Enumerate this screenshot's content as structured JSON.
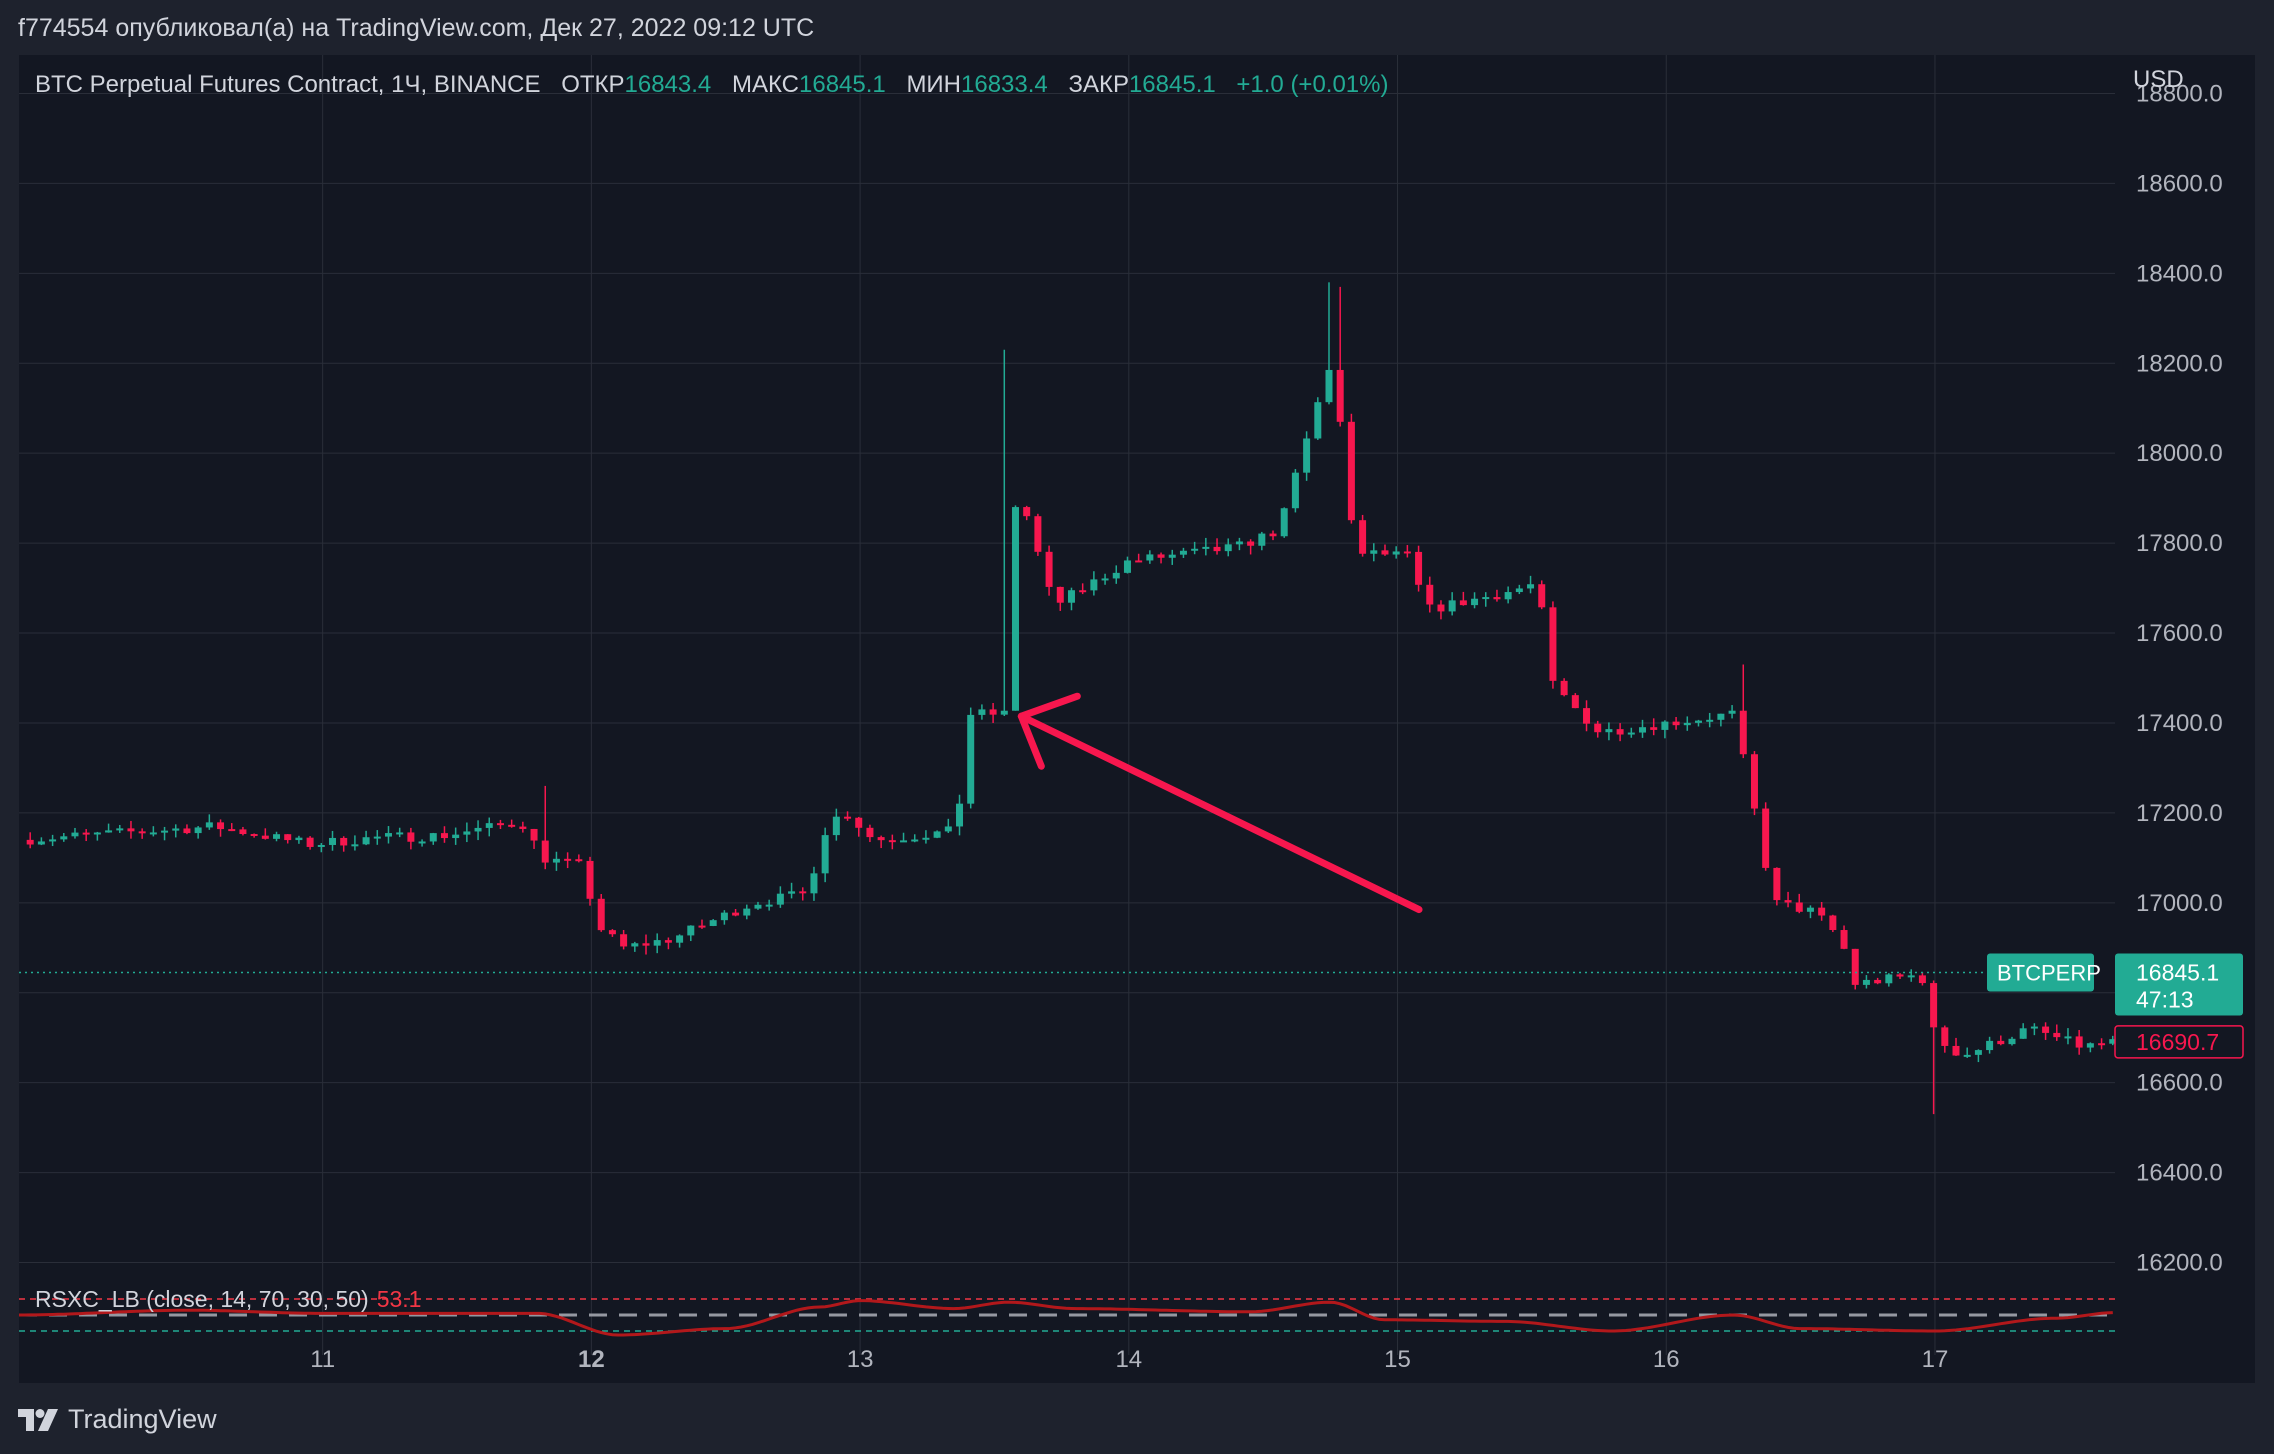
{
  "header": {
    "publisher_line": "f774554 опубликовал(а) на TradingView.com, Дек 27, 2022 09:12 UTC"
  },
  "legend": {
    "symbol": "BTC Perpetual Futures Contract, 1Ч, BINANCE",
    "open_label": "ОТКР",
    "open_value": "16843.4",
    "high_label": "МАКС",
    "high_value": "16845.1",
    "low_label": "МИН",
    "low_value": "16833.4",
    "close_label": "ЗАКР",
    "close_value": "16845.1",
    "change": "+1.0 (+0.01%)"
  },
  "currency": "USD",
  "price_tags": {
    "symbol_tag": "BTCPERP",
    "last_price": "16845.1",
    "countdown": "47:13",
    "other_price": "16690.7"
  },
  "indicator": {
    "label": "RSXC_LB (close, 14, 70, 30, 50)",
    "value": "53.1"
  },
  "footer": {
    "brand": "TradingView"
  },
  "colors": {
    "up": "#22ab94",
    "down": "#f7174e",
    "arrow": "#f7174e",
    "rsi_line": "#b2181b",
    "background": "#131722",
    "grid": "#2a2e39"
  },
  "chart_data": {
    "type": "candlestick",
    "title": "BTC Perpetual Futures Contract, 1Ч, BINANCE",
    "ylim": [
      16150,
      18850
    ],
    "y_ticks": [
      "16200.0",
      "16400.0",
      "16600.0",
      "16800.0",
      "17000.0",
      "17200.0",
      "17400.0",
      "17600.0",
      "17800.0",
      "18000.0",
      "18200.0",
      "18400.0",
      "18600.0",
      "18800.0"
    ],
    "x_ticks": [
      "11",
      "12",
      "13",
      "14",
      "15",
      "16",
      "17"
    ],
    "x_ticks_bold": [
      "12"
    ],
    "x_range_days": [
      9.87,
      17.67
    ],
    "last_price_line": 16845.1,
    "indicator_levels": {
      "upper": 70,
      "middle": 50,
      "lower": 30
    },
    "grid": true,
    "keypoints": [
      {
        "t": 9.87,
        "p": 17140
      },
      {
        "t": 10.6,
        "p": 17170
      },
      {
        "t": 10.95,
        "p": 17130
      },
      {
        "t": 11.2,
        "p": 17145
      },
      {
        "t": 11.45,
        "p": 17150
      },
      {
        "t": 11.74,
        "p": 17180
      },
      {
        "t": 11.82,
        "p": 17100
      },
      {
        "t": 11.97,
        "p": 17080
      },
      {
        "t": 12.02,
        "p": 16950
      },
      {
        "t": 12.12,
        "p": 16900
      },
      {
        "t": 12.3,
        "p": 16920
      },
      {
        "t": 12.6,
        "p": 17000
      },
      {
        "t": 12.8,
        "p": 17020
      },
      {
        "t": 12.88,
        "p": 17180
      },
      {
        "t": 12.95,
        "p": 17200
      },
      {
        "t": 13.05,
        "p": 17140
      },
      {
        "t": 13.36,
        "p": 17160
      },
      {
        "t": 13.4,
        "p": 17420
      },
      {
        "t": 13.54,
        "p": 17420
      },
      {
        "t": 13.55,
        "p": 17900
      },
      {
        "t": 13.62,
        "p": 17860
      },
      {
        "t": 13.72,
        "p": 17660
      },
      {
        "t": 14.0,
        "p": 17760
      },
      {
        "t": 14.4,
        "p": 17790
      },
      {
        "t": 14.56,
        "p": 17830
      },
      {
        "t": 14.62,
        "p": 17950
      },
      {
        "t": 14.76,
        "p": 18220
      },
      {
        "t": 14.8,
        "p": 17990
      },
      {
        "t": 14.84,
        "p": 17780
      },
      {
        "t": 15.05,
        "p": 17770
      },
      {
        "t": 15.1,
        "p": 17650
      },
      {
        "t": 15.4,
        "p": 17690
      },
      {
        "t": 15.52,
        "p": 17710
      },
      {
        "t": 15.58,
        "p": 17480
      },
      {
        "t": 15.75,
        "p": 17380
      },
      {
        "t": 16.25,
        "p": 17420
      },
      {
        "t": 16.33,
        "p": 17200
      },
      {
        "t": 16.4,
        "p": 17000
      },
      {
        "t": 16.55,
        "p": 16980
      },
      {
        "t": 16.65,
        "p": 16920
      },
      {
        "t": 16.7,
        "p": 16820
      },
      {
        "t": 16.95,
        "p": 16840
      },
      {
        "t": 17.0,
        "p": 16700
      },
      {
        "t": 17.1,
        "p": 16660
      },
      {
        "t": 17.35,
        "p": 16720
      },
      {
        "t": 17.55,
        "p": 16680
      },
      {
        "t": 17.67,
        "p": 16690
      }
    ],
    "spikes": [
      {
        "t": 13.54,
        "high": 18230
      },
      {
        "t": 14.76,
        "high": 18380
      },
      {
        "t": 14.8,
        "high": 18370
      },
      {
        "t": 16.3,
        "high": 17530
      },
      {
        "t": 17.0,
        "low": 16530
      },
      {
        "t": 11.83,
        "high": 17260
      }
    ],
    "rsi_keypoints": [
      {
        "t": 9.87,
        "v": 50
      },
      {
        "t": 10.5,
        "v": 56
      },
      {
        "t": 11.0,
        "v": 52
      },
      {
        "t": 11.8,
        "v": 52
      },
      {
        "t": 12.1,
        "v": 25
      },
      {
        "t": 12.5,
        "v": 33
      },
      {
        "t": 12.85,
        "v": 60
      },
      {
        "t": 13.0,
        "v": 68
      },
      {
        "t": 13.35,
        "v": 58
      },
      {
        "t": 13.55,
        "v": 66
      },
      {
        "t": 13.8,
        "v": 58
      },
      {
        "t": 14.45,
        "v": 54
      },
      {
        "t": 14.75,
        "v": 66
      },
      {
        "t": 14.95,
        "v": 44
      },
      {
        "t": 15.4,
        "v": 42
      },
      {
        "t": 15.8,
        "v": 30
      },
      {
        "t": 16.25,
        "v": 50
      },
      {
        "t": 16.5,
        "v": 33
      },
      {
        "t": 17.0,
        "v": 30
      },
      {
        "t": 17.45,
        "v": 46
      },
      {
        "t": 17.67,
        "v": 53
      }
    ],
    "annotation_arrow": {
      "from": {
        "t": 15.08,
        "p": 16985
      },
      "to": {
        "t": 13.6,
        "p": 17415
      }
    }
  }
}
